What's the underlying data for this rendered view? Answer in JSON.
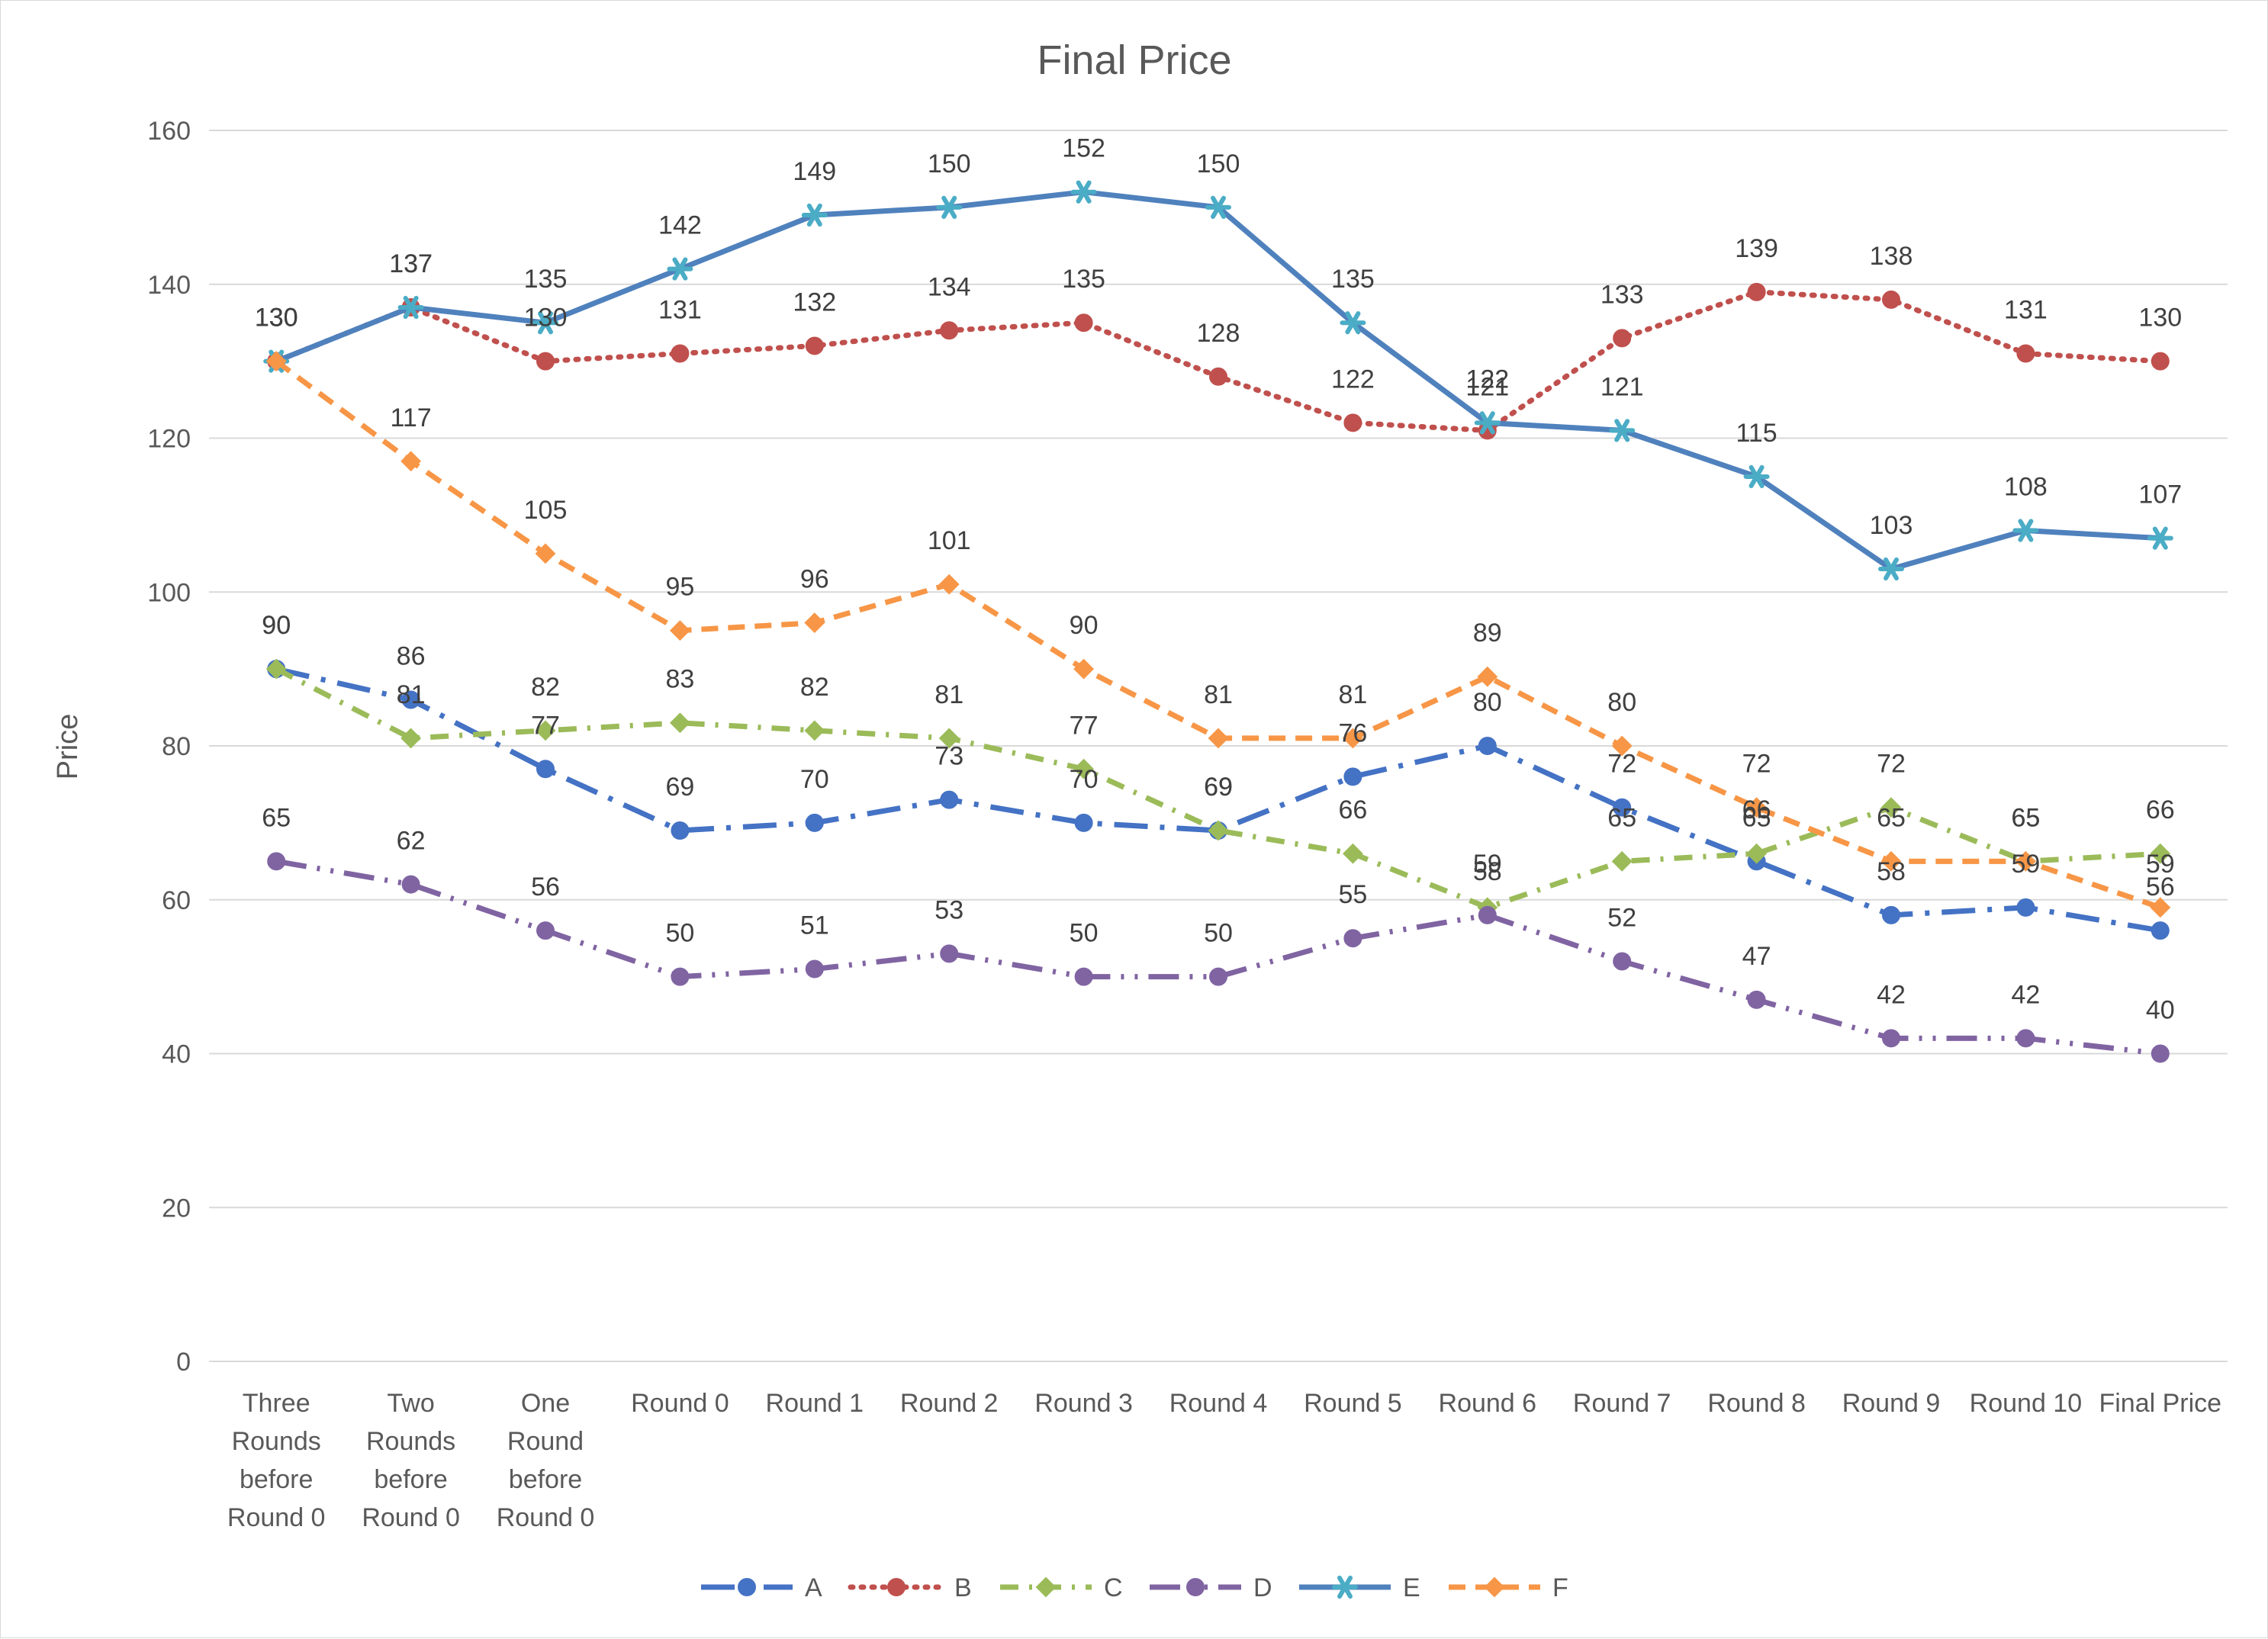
{
  "chart_data": {
    "type": "line",
    "title": "Final Price",
    "xlabel": "",
    "ylabel": "Price",
    "ylim": [
      0,
      160
    ],
    "yticks": [
      0,
      20,
      40,
      60,
      80,
      100,
      120,
      140,
      160
    ],
    "grid": true,
    "legend_position": "bottom",
    "categories": [
      "Three Rounds before Round 0",
      "Two Rounds before Round 0",
      "One Round before Round 0",
      "Round 0",
      "Round 1",
      "Round 2",
      "Round 3",
      "Round 4",
      "Round 5",
      "Round 6",
      "Round 7",
      "Round 8",
      "Round 9",
      "Round 10",
      "Final Price"
    ],
    "category_lines": [
      [
        "Three",
        "Rounds",
        "before",
        "Round 0"
      ],
      [
        "Two",
        "Rounds",
        "before",
        "Round 0"
      ],
      [
        "One",
        "Round",
        "before",
        "Round 0"
      ],
      [
        "Round 0"
      ],
      [
        "Round 1"
      ],
      [
        "Round 2"
      ],
      [
        "Round 3"
      ],
      [
        "Round 4"
      ],
      [
        "Round 5"
      ],
      [
        "Round 6"
      ],
      [
        "Round 7"
      ],
      [
        "Round 8"
      ],
      [
        "Round 9"
      ],
      [
        "Round 10"
      ],
      [
        "Final Price"
      ]
    ],
    "series": [
      {
        "name": "A",
        "color": "#4472C4",
        "dash": "long-dash-dot",
        "marker": "circle",
        "values": [
          90,
          86,
          77,
          69,
          70,
          73,
          70,
          69,
          76,
          80,
          72,
          65,
          58,
          59,
          56
        ],
        "labels": [
          "90",
          "86",
          "77",
          "69",
          "70",
          "73",
          "70",
          "69",
          "76",
          "80",
          "72",
          "65",
          "58",
          "59",
          "56"
        ]
      },
      {
        "name": "B",
        "color": "#C0504D",
        "dash": "dot",
        "marker": "circle",
        "values": [
          130,
          137,
          130,
          131,
          132,
          134,
          135,
          128,
          122,
          121,
          133,
          139,
          138,
          131,
          130
        ],
        "labels": [
          "130",
          "137",
          "130",
          "131",
          "132",
          "134",
          "135",
          "128",
          "122",
          "121",
          "133",
          "139",
          "138",
          "131",
          "130"
        ]
      },
      {
        "name": "C",
        "color": "#9BBB59",
        "dash": "dash-dot",
        "marker": "diamond",
        "values": [
          90,
          81,
          82,
          83,
          82,
          81,
          77,
          69,
          66,
          59,
          65,
          66,
          72,
          65,
          66
        ],
        "labels": [
          "90",
          "81",
          "82",
          "83",
          "82",
          "81",
          "77",
          "69",
          "66",
          "59",
          "65",
          "66",
          "72",
          "65",
          "66"
        ]
      },
      {
        "name": "D",
        "color": "#8064A2",
        "dash": "long-dash-dot-dot",
        "marker": "circle",
        "values": [
          65,
          62,
          56,
          50,
          51,
          53,
          50,
          50,
          55,
          58,
          52,
          47,
          42,
          42,
          40
        ],
        "labels": [
          "65",
          "62",
          "56",
          "50",
          "51",
          "53",
          "50",
          "50",
          "55",
          "58",
          "52",
          "47",
          "42",
          "42",
          "40"
        ]
      },
      {
        "name": "E",
        "color": "#4BACC6",
        "line_color": "#4F81BD",
        "dash": "solid",
        "marker": "star",
        "values": [
          130,
          137,
          135,
          142,
          149,
          150,
          152,
          150,
          135,
          122,
          121,
          115,
          103,
          108,
          107
        ],
        "labels": [
          "130",
          "137",
          "135",
          "142",
          "149",
          "150",
          "152",
          "150",
          "135",
          "122",
          "121",
          "115",
          "103",
          "108",
          "107"
        ]
      },
      {
        "name": "F",
        "color": "#F79646",
        "dash": "dash",
        "marker": "diamond",
        "values": [
          130,
          117,
          105,
          95,
          96,
          101,
          90,
          81,
          81,
          89,
          80,
          72,
          65,
          65,
          59
        ],
        "labels": [
          "130",
          "117",
          "105",
          "95",
          "96",
          "101",
          "90",
          "81",
          "81",
          "89",
          "80",
          "72",
          "65",
          "65",
          "59"
        ]
      }
    ]
  }
}
